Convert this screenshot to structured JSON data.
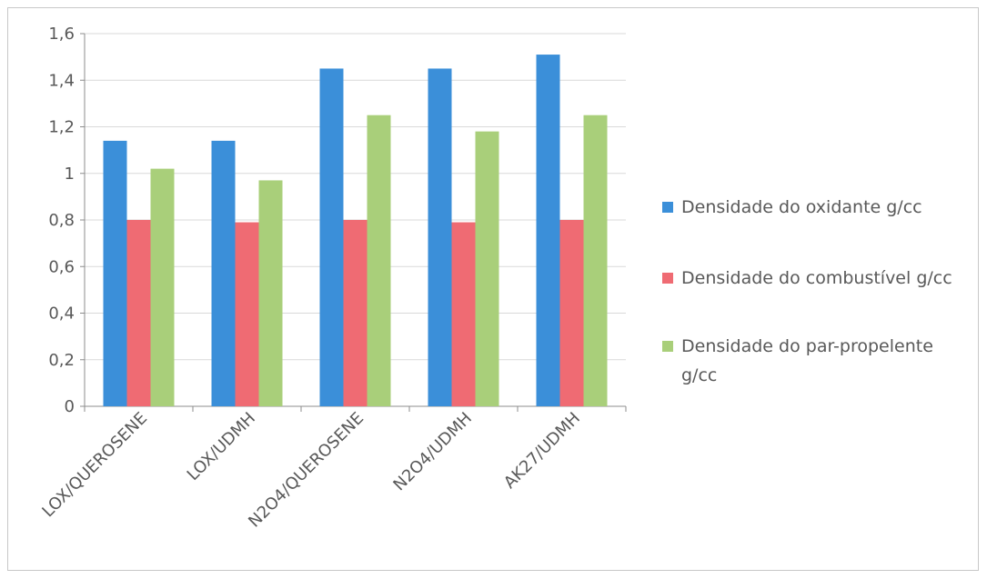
{
  "chart_data": {
    "type": "bar",
    "categories": [
      "LOX/QUEROSENE",
      "LOX/UDMH",
      "N2O4/QUEROSENE",
      "N2O4/UDMH",
      "AK27/UDMH"
    ],
    "series": [
      {
        "name": "Densidade do oxidante g/cc",
        "color": "#3b8fd9",
        "values": [
          1.14,
          1.14,
          1.45,
          1.45,
          1.51
        ]
      },
      {
        "name": "Densidade do combustível g/cc",
        "color": "#ef6b73",
        "values": [
          0.8,
          0.79,
          0.8,
          0.79,
          0.8
        ]
      },
      {
        "name": "Densidade do par-propelente g/cc",
        "color": "#a9cf7a",
        "values": [
          1.02,
          0.97,
          1.25,
          1.18,
          1.25
        ]
      }
    ],
    "ylim": [
      0,
      1.6
    ],
    "yticks": [
      "0",
      "0,2",
      "0,4",
      "0,6",
      "0,8",
      "1",
      "1,2",
      "1,4",
      "1,6"
    ],
    "grid": true,
    "legend_position": "right"
  }
}
